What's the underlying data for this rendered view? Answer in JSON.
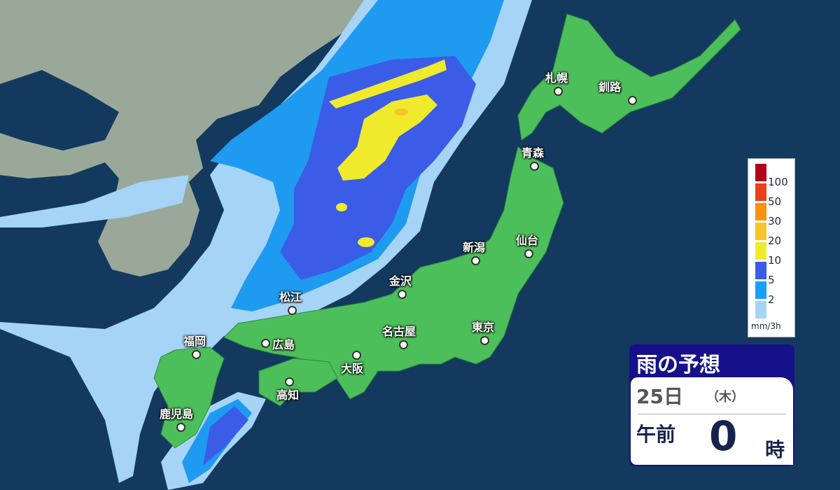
{
  "colors": {
    "sea": "#133a5e",
    "land_foreign": "#9aa89a",
    "land_japan": "#4cbf5a",
    "rain_2": "#a6d4f7",
    "rain_5": "#1e9bf0",
    "rain_10": "#3b5ce6",
    "rain_20": "#f0ea2c",
    "rain_30": "#f7c52a",
    "rain_50": "#f0901a",
    "rain_100": "#b0001a"
  },
  "cities": [
    {
      "name": "札幌"
    },
    {
      "name": "釧路"
    },
    {
      "name": "青森"
    },
    {
      "name": "新潟"
    },
    {
      "name": "仙台"
    },
    {
      "name": "金沢"
    },
    {
      "name": "松江"
    },
    {
      "name": "名古屋"
    },
    {
      "name": "東京"
    },
    {
      "name": "福岡"
    },
    {
      "name": "広島"
    },
    {
      "name": "大阪"
    },
    {
      "name": "高知"
    },
    {
      "name": "鹿児島"
    }
  ],
  "legend": {
    "items": [
      {
        "label": "100",
        "color": "#b0001a"
      },
      {
        "label": "50",
        "color": "#e8421a"
      },
      {
        "label": "30",
        "color": "#f7930e"
      },
      {
        "label": "20",
        "color": "#f7c52a"
      },
      {
        "label": "10",
        "color": "#eeec2c"
      },
      {
        "label": "5",
        "color": "#3b5ce6"
      },
      {
        "label": "2",
        "color": "#16a0f7"
      },
      {
        "label": "",
        "color": "#a6d4f7"
      }
    ],
    "unit": "mm/3h"
  },
  "info": {
    "title": "雨の予想",
    "date": "25日",
    "weekday": "（木）",
    "ampm": "午前",
    "hour": "0",
    "hour_unit": "時"
  }
}
